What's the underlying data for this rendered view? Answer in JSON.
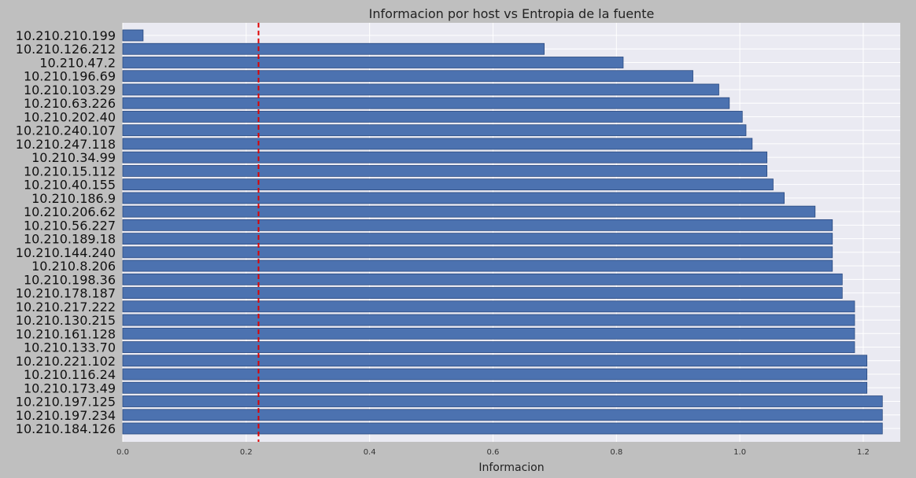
{
  "chart_data": {
    "type": "bar",
    "orientation": "horizontal",
    "title": "Informacion por host vs Entropia de la fuente",
    "xlabel": "Informacion",
    "ylabel": "",
    "xlim": [
      0,
      1.26
    ],
    "xticks": [
      "0.0",
      "0.2",
      "0.4",
      "0.6",
      "0.8",
      "1.0",
      "1.2"
    ],
    "grid": true,
    "categories": [
      "10.210.210.199",
      "10.210.126.212",
      "10.210.47.2",
      "10.210.196.69",
      "10.210.103.29",
      "10.210.63.226",
      "10.210.202.40",
      "10.210.240.107",
      "10.210.247.118",
      "10.210.34.99",
      "10.210.15.112",
      "10.210.40.155",
      "10.210.186.9",
      "10.210.206.62",
      "10.210.56.227",
      "10.210.189.18",
      "10.210.144.240",
      "10.210.8.206",
      "10.210.198.36",
      "10.210.178.187",
      "10.210.217.222",
      "10.210.130.215",
      "10.210.161.128",
      "10.210.133.70",
      "10.210.221.102",
      "10.210.116.24",
      "10.210.173.49",
      "10.210.197.125",
      "10.210.197.234",
      "10.210.184.126"
    ],
    "values": [
      0.033,
      0.683,
      0.811,
      0.924,
      0.966,
      0.983,
      1.004,
      1.01,
      1.02,
      1.044,
      1.044,
      1.054,
      1.072,
      1.122,
      1.15,
      1.15,
      1.15,
      1.15,
      1.166,
      1.166,
      1.186,
      1.186,
      1.186,
      1.186,
      1.206,
      1.206,
      1.206,
      1.231,
      1.231,
      1.231
    ],
    "reference_line": {
      "x": 0.22,
      "style": "dashed",
      "color": "#dd0000"
    },
    "colors": {
      "bar": "#4c72b0",
      "bar_edge": "#2a4a80",
      "plot_bg": "#eaeaf2",
      "figure_bg": "#bfbfbf"
    }
  }
}
